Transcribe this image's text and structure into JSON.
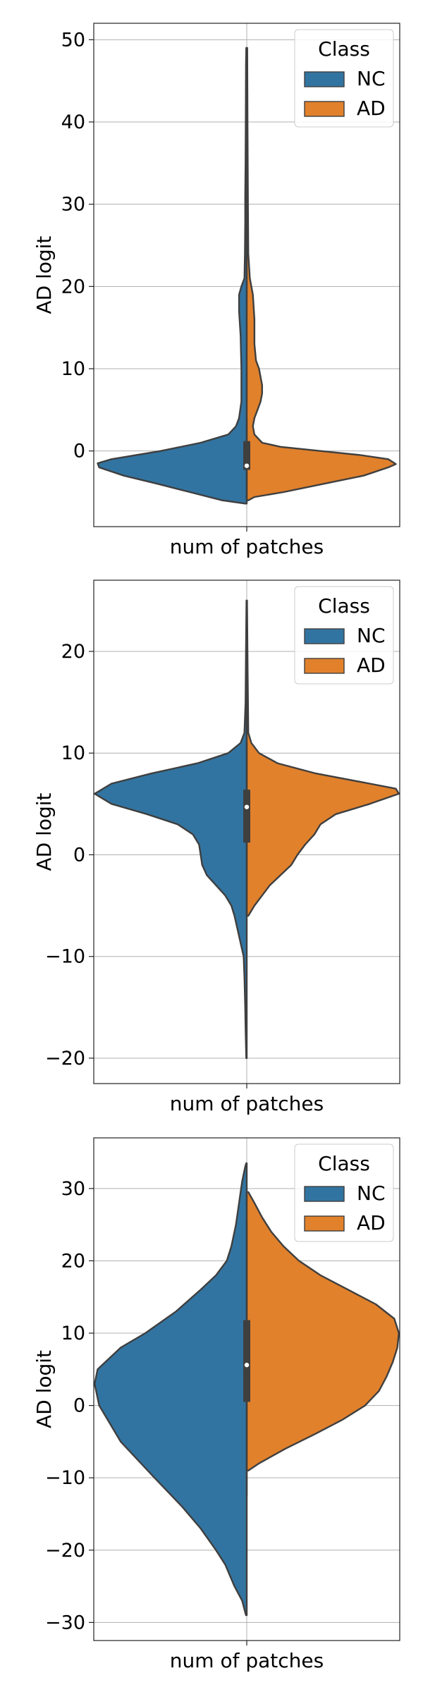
{
  "chart_data": [
    {
      "type": "violin",
      "xlabel": "num of patches",
      "ylabel": "AD logit",
      "ylim": [
        -9.2,
        52.0
      ],
      "yticks": [
        0,
        10,
        20,
        30,
        40,
        50
      ],
      "grid": true,
      "legend": {
        "title": "Class",
        "placement": "top-right",
        "entries": [
          {
            "name": "NC",
            "color": "#3274a1"
          },
          {
            "name": "AD",
            "color": "#e1812c"
          }
        ]
      },
      "series": [
        {
          "name": "NC",
          "side": "left",
          "color": "#3274a1",
          "profile": [
            [
              -6.4,
              0.01
            ],
            [
              -6.0,
              0.16
            ],
            [
              -5.0,
              0.37
            ],
            [
              -4.0,
              0.58
            ],
            [
              -3.0,
              0.8
            ],
            [
              -2.0,
              0.96
            ],
            [
              -1.5,
              0.97
            ],
            [
              -1.0,
              0.88
            ],
            [
              0.0,
              0.56
            ],
            [
              1.0,
              0.3
            ],
            [
              2.0,
              0.12
            ],
            [
              3.0,
              0.07
            ],
            [
              4.0,
              0.05
            ],
            [
              6.0,
              0.035
            ],
            [
              10.0,
              0.035
            ],
            [
              14.0,
              0.04
            ],
            [
              17.0,
              0.05
            ],
            [
              19.0,
              0.05
            ],
            [
              20.0,
              0.035
            ],
            [
              21.0,
              0.015
            ],
            [
              24.0,
              0.012
            ],
            [
              28.0,
              0.01
            ],
            [
              31.0,
              0.01
            ],
            [
              35.0,
              0.008
            ],
            [
              42.0,
              0.006
            ],
            [
              47.0,
              0.005
            ],
            [
              49.0,
              0.003
            ]
          ]
        },
        {
          "name": "AD",
          "side": "right",
          "color": "#e1812c",
          "profile": [
            [
              -6.0,
              0.01
            ],
            [
              -5.6,
              0.05
            ],
            [
              -5.0,
              0.24
            ],
            [
              -4.0,
              0.5
            ],
            [
              -3.0,
              0.76
            ],
            [
              -2.0,
              0.92
            ],
            [
              -1.6,
              0.97
            ],
            [
              -1.0,
              0.92
            ],
            [
              -0.5,
              0.74
            ],
            [
              0.0,
              0.48
            ],
            [
              0.5,
              0.22
            ],
            [
              1.0,
              0.1
            ],
            [
              2.0,
              0.05
            ],
            [
              3.0,
              0.04
            ],
            [
              4.0,
              0.05
            ],
            [
              5.0,
              0.07
            ],
            [
              6.0,
              0.09
            ],
            [
              7.0,
              0.1
            ],
            [
              8.0,
              0.1
            ],
            [
              9.0,
              0.09
            ],
            [
              10.0,
              0.08
            ],
            [
              11.0,
              0.06
            ],
            [
              13.0,
              0.05
            ],
            [
              16.0,
              0.05
            ],
            [
              19.0,
              0.04
            ],
            [
              21.0,
              0.02
            ],
            [
              24.0,
              0.01
            ],
            [
              30.0,
              0.008
            ],
            [
              40.0,
              0.005
            ],
            [
              49.0,
              0.003
            ]
          ]
        }
      ],
      "box": {
        "q1": -2.3,
        "q3": 1.2,
        "whisker_low": -6.0,
        "whisker_high": 4.0,
        "median": -1.8
      }
    },
    {
      "type": "violin",
      "xlabel": "num of patches",
      "ylabel": "AD logit",
      "ylim": [
        -22.5,
        27.0
      ],
      "yticks": [
        -20,
        -10,
        0,
        10,
        20
      ],
      "grid": true,
      "legend": {
        "title": "Class",
        "placement": "top-right",
        "entries": [
          {
            "name": "NC",
            "color": "#3274a1"
          },
          {
            "name": "AD",
            "color": "#e1812c"
          }
        ]
      },
      "series": [
        {
          "name": "NC",
          "side": "left",
          "color": "#3274a1",
          "profile": [
            [
              -20.0,
              0.003
            ],
            [
              -17.0,
              0.008
            ],
            [
              -15.0,
              0.01
            ],
            [
              -12.0,
              0.015
            ],
            [
              -10.0,
              0.02
            ],
            [
              -8.0,
              0.05
            ],
            [
              -6.0,
              0.08
            ],
            [
              -5.0,
              0.1
            ],
            [
              -4.0,
              0.14
            ],
            [
              -3.0,
              0.2
            ],
            [
              -2.0,
              0.26
            ],
            [
              -1.0,
              0.29
            ],
            [
              0.0,
              0.3
            ],
            [
              1.0,
              0.31
            ],
            [
              2.0,
              0.35
            ],
            [
              3.0,
              0.45
            ],
            [
              4.0,
              0.65
            ],
            [
              5.0,
              0.88
            ],
            [
              6.0,
              0.99
            ],
            [
              7.0,
              0.88
            ],
            [
              8.0,
              0.62
            ],
            [
              9.0,
              0.32
            ],
            [
              10.0,
              0.12
            ],
            [
              11.0,
              0.04
            ],
            [
              12.0,
              0.015
            ],
            [
              15.0,
              0.008
            ],
            [
              20.0,
              0.005
            ],
            [
              25.0,
              0.002
            ]
          ]
        },
        {
          "name": "AD",
          "side": "right",
          "color": "#e1812c",
          "profile": [
            [
              -6.0,
              0.01
            ],
            [
              -5.0,
              0.05
            ],
            [
              -4.0,
              0.1
            ],
            [
              -3.0,
              0.15
            ],
            [
              -2.0,
              0.22
            ],
            [
              -1.0,
              0.29
            ],
            [
              0.0,
              0.33
            ],
            [
              1.0,
              0.38
            ],
            [
              2.0,
              0.44
            ],
            [
              3.0,
              0.48
            ],
            [
              4.0,
              0.58
            ],
            [
              5.0,
              0.8
            ],
            [
              6.0,
              0.99
            ],
            [
              6.5,
              0.97
            ],
            [
              7.0,
              0.8
            ],
            [
              8.0,
              0.45
            ],
            [
              9.0,
              0.2
            ],
            [
              10.0,
              0.08
            ],
            [
              11.0,
              0.03
            ],
            [
              12.0,
              0.01
            ],
            [
              18.0,
              0.006
            ],
            [
              25.0,
              0.002
            ]
          ]
        }
      ],
      "box": {
        "q1": 1.2,
        "q3": 6.4,
        "whisker_low": -6.0,
        "whisker_high": 11.0,
        "median": 4.7
      }
    },
    {
      "type": "violin",
      "xlabel": "num of patches",
      "ylabel": "AD logit",
      "ylim": [
        -32.5,
        37.0
      ],
      "yticks": [
        -30,
        -20,
        -10,
        0,
        10,
        20,
        30
      ],
      "grid": true,
      "legend": {
        "title": "Class",
        "placement": "top-right",
        "entries": [
          {
            "name": "NC",
            "color": "#3274a1"
          },
          {
            "name": "AD",
            "color": "#e1812c"
          }
        ]
      },
      "series": [
        {
          "name": "NC",
          "side": "left",
          "color": "#3274a1",
          "profile": [
            [
              -29.0,
              0.005
            ],
            [
              -27.0,
              0.03
            ],
            [
              -25.0,
              0.08
            ],
            [
              -22.0,
              0.14
            ],
            [
              -20.0,
              0.2
            ],
            [
              -17.0,
              0.3
            ],
            [
              -14.0,
              0.42
            ],
            [
              -10.0,
              0.6
            ],
            [
              -5.0,
              0.82
            ],
            [
              0.0,
              0.96
            ],
            [
              3.0,
              0.99
            ],
            [
              5.0,
              0.97
            ],
            [
              8.0,
              0.82
            ],
            [
              10.0,
              0.66
            ],
            [
              13.0,
              0.46
            ],
            [
              16.0,
              0.3
            ],
            [
              18.0,
              0.2
            ],
            [
              20.0,
              0.13
            ],
            [
              22.0,
              0.1
            ],
            [
              25.0,
              0.07
            ],
            [
              28.0,
              0.05
            ],
            [
              31.0,
              0.03
            ],
            [
              33.0,
              0.01
            ],
            [
              33.5,
              0.003
            ]
          ]
        },
        {
          "name": "AD",
          "side": "right",
          "color": "#e1812c",
          "profile": [
            [
              -9.0,
              0.01
            ],
            [
              -8.0,
              0.08
            ],
            [
              -6.0,
              0.25
            ],
            [
              -4.0,
              0.44
            ],
            [
              -2.0,
              0.62
            ],
            [
              0.0,
              0.77
            ],
            [
              2.0,
              0.86
            ],
            [
              4.0,
              0.91
            ],
            [
              6.0,
              0.95
            ],
            [
              8.0,
              0.98
            ],
            [
              10.0,
              0.99
            ],
            [
              12.0,
              0.96
            ],
            [
              14.0,
              0.84
            ],
            [
              16.0,
              0.66
            ],
            [
              18.0,
              0.48
            ],
            [
              20.0,
              0.34
            ],
            [
              22.0,
              0.24
            ],
            [
              24.0,
              0.16
            ],
            [
              26.0,
              0.1
            ],
            [
              28.0,
              0.05
            ],
            [
              29.5,
              0.01
            ]
          ]
        }
      ],
      "box": {
        "q1": 0.5,
        "q3": 11.8,
        "whisker_low": -12.5,
        "whisker_high": 25.5,
        "median": 5.6
      }
    }
  ]
}
